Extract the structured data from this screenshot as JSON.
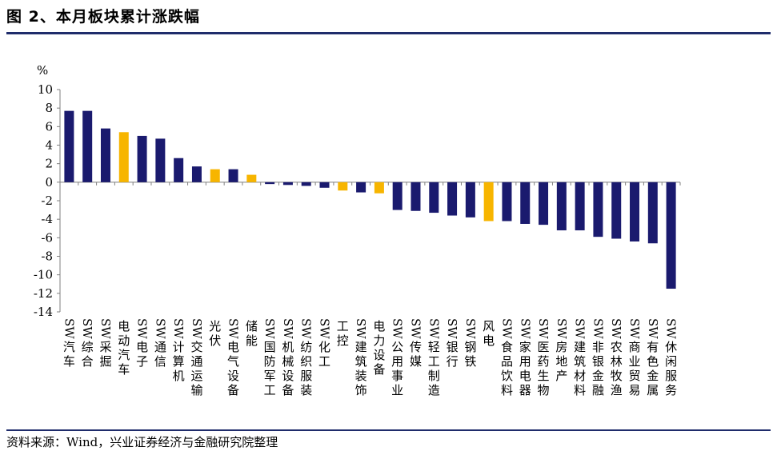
{
  "title": "图 2、本月板块累计涨跌幅",
  "source": "资料来源：Wind，兴业证券经济与金融研究院整理",
  "colors": {
    "navy": "#1a1a6e",
    "gold": "#f7b500",
    "axis": "#7f7f7f",
    "rule": "#1f2c6b"
  },
  "chart_data": {
    "type": "bar",
    "ylabel": "%",
    "ylim": [
      -14,
      10
    ],
    "yticks": [
      10,
      8,
      6,
      4,
      2,
      0,
      -2,
      -4,
      -6,
      -8,
      -10,
      -12,
      -14
    ],
    "categories": [
      "SW汽车",
      "SW综合",
      "SW采掘",
      "电动汽车",
      "SW电子",
      "SW通信",
      "SW计算机",
      "SW交通运输",
      "光伏",
      "SW电气设备",
      "储能",
      "SW国防军工",
      "SW机械设备",
      "SW纺织服装",
      "SW化工",
      "工控",
      "SW建筑装饰",
      "电力设备",
      "SW公用事业",
      "SW传媒",
      "SW轻工制造",
      "SW银行",
      "SW钢铁",
      "风电",
      "SW食品饮料",
      "SW家用电器",
      "SW医药生物",
      "SW房地产",
      "SW建筑材料",
      "SW非银金融",
      "SW农林牧渔",
      "SW商业贸易",
      "SW有色金属",
      "SW休闲服务"
    ],
    "values": [
      7.7,
      7.7,
      5.8,
      5.4,
      5.0,
      4.7,
      2.6,
      1.7,
      1.4,
      1.4,
      0.8,
      -0.2,
      -0.3,
      -0.4,
      -0.6,
      -0.9,
      -1.1,
      -1.2,
      -3.0,
      -3.1,
      -3.3,
      -3.6,
      -3.8,
      -4.2,
      -4.2,
      -4.5,
      -4.6,
      -5.2,
      -5.2,
      -5.9,
      -6.1,
      -6.4,
      -6.6,
      -11.5
    ],
    "highlight": [
      "电动汽车",
      "光伏",
      "储能",
      "工控",
      "电力设备",
      "风电"
    ]
  }
}
